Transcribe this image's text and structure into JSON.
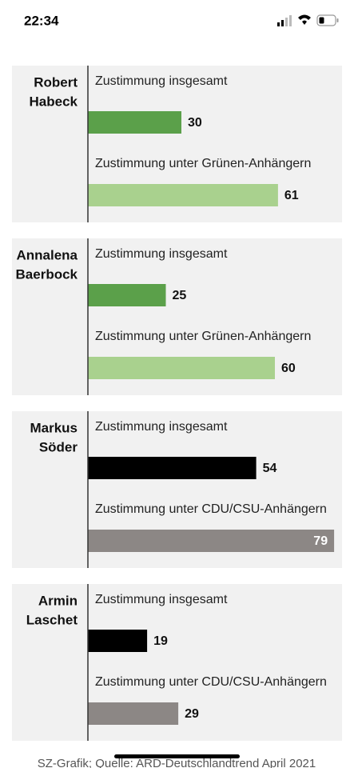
{
  "status_bar": {
    "time": "22:34"
  },
  "chart_data": [
    {
      "type": "bar",
      "title": [
        "Robert",
        "Habeck"
      ],
      "xlim": [
        0,
        80
      ],
      "series": [
        {
          "name": "Zustimmung insgesamt",
          "color": "#5ba04a",
          "values": [
            30
          ]
        },
        {
          "name": "Zustimmung unter Grünen-Anhängern",
          "color": "#a9d18e",
          "values": [
            61
          ]
        }
      ]
    },
    {
      "type": "bar",
      "title": [
        "Annalena",
        "Baerbock"
      ],
      "xlim": [
        0,
        80
      ],
      "series": [
        {
          "name": "Zustimmung insgesamt",
          "color": "#5ba04a",
          "values": [
            25
          ]
        },
        {
          "name": "Zustimmung unter Grünen-Anhängern",
          "color": "#a9d18e",
          "values": [
            60
          ]
        }
      ]
    },
    {
      "type": "bar",
      "title": [
        "Markus",
        "Söder"
      ],
      "xlim": [
        0,
        80
      ],
      "series": [
        {
          "name": "Zustimmung insgesamt",
          "color": "#000000",
          "values": [
            54
          ]
        },
        {
          "name": "Zustimmung unter CDU/CSU-Anhängern",
          "color": "#8c8785",
          "values": [
            79
          ]
        }
      ]
    },
    {
      "type": "bar",
      "title": [
        "Armin",
        "Laschet"
      ],
      "xlim": [
        0,
        80
      ],
      "series": [
        {
          "name": "Zustimmung insgesamt",
          "color": "#000000",
          "values": [
            19
          ]
        },
        {
          "name": "Zustimmung unter CDU/CSU-Anhängern",
          "color": "#8c8785",
          "values": [
            29
          ]
        }
      ]
    }
  ],
  "source": "SZ-Grafik; Quelle: ARD-Deutschlandtrend April 2021"
}
